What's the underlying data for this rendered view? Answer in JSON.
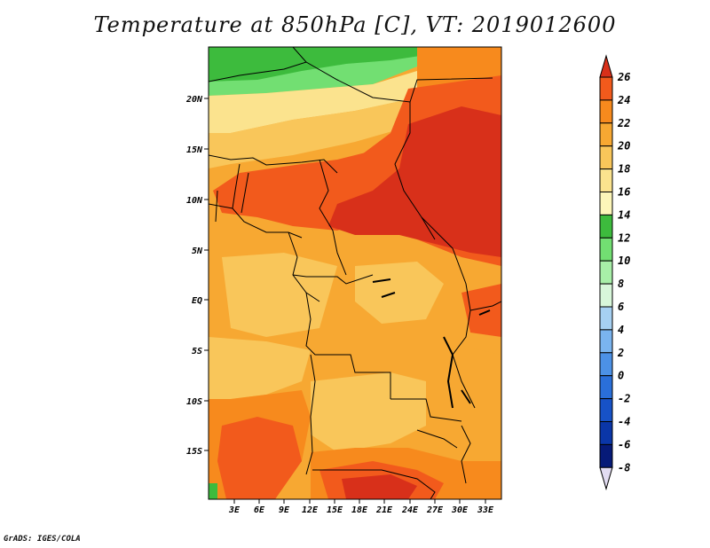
{
  "title": "Temperature at 850hPa [C], VT: 2019012600",
  "credit": "GrADS: IGES/COLA",
  "map": {
    "lat_labels": [
      "20N",
      "15N",
      "10N",
      "5N",
      "EQ",
      "5S",
      "10S",
      "15S"
    ],
    "lon_labels": [
      "3E",
      "6E",
      "9E",
      "12E",
      "15E",
      "18E",
      "21E",
      "24E",
      "27E",
      "30E",
      "33E"
    ]
  },
  "colorbar": {
    "levels": [
      "26",
      "24",
      "22",
      "20",
      "18",
      "16",
      "14",
      "12",
      "10",
      "8",
      "6",
      "4",
      "2",
      "0",
      "-2",
      "-4",
      "-6",
      "-8"
    ],
    "colors": [
      "#d8301a",
      "#f25a1c",
      "#f78a1d",
      "#f7a832",
      "#f9c65a",
      "#fbe38e",
      "#fdf6b9",
      "#3dbb3d",
      "#72df72",
      "#a8efa8",
      "#d8f7da",
      "#a6d0f2",
      "#7ab4ef",
      "#4c91e6",
      "#2a6fd9",
      "#1752c7",
      "#0a36a8",
      "#061a78",
      "#e2dcf2"
    ]
  }
}
